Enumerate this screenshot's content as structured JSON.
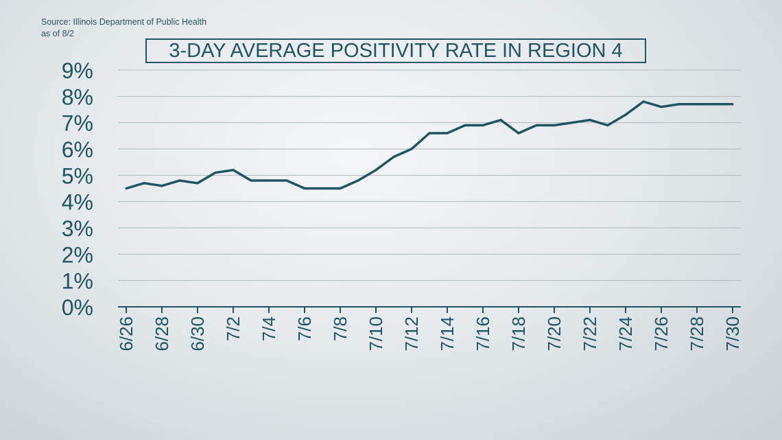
{
  "source": {
    "line1": "Source: Illinois Department of Public Health",
    "line2": "as of 8/2"
  },
  "chart_data": {
    "type": "line",
    "title": "3-DAY AVERAGE POSITIVITY RATE IN REGION 4",
    "xlabel": "",
    "ylabel": "",
    "ylim": [
      0,
      9
    ],
    "y_ticks": [
      "0%",
      "1%",
      "2%",
      "3%",
      "4%",
      "5%",
      "6%",
      "7%",
      "8%",
      "9%"
    ],
    "x_tick_labels": [
      "6/26",
      "6/28",
      "6/30",
      "7/2",
      "7/4",
      "7/6",
      "7/8",
      "7/10",
      "7/12",
      "7/14",
      "7/16",
      "7/18",
      "7/20",
      "7/22",
      "7/24",
      "7/26",
      "7/28",
      "7/30"
    ],
    "grid": true,
    "line_color": "#1f5562",
    "x": [
      "6/26",
      "6/27",
      "6/28",
      "6/29",
      "6/30",
      "7/1",
      "7/2",
      "7/3",
      "7/4",
      "7/5",
      "7/6",
      "7/7",
      "7/8",
      "7/9",
      "7/10",
      "7/11",
      "7/12",
      "7/13",
      "7/14",
      "7/15",
      "7/16",
      "7/17",
      "7/18",
      "7/19",
      "7/20",
      "7/21",
      "7/22",
      "7/23",
      "7/24",
      "7/25",
      "7/26",
      "7/27",
      "7/28",
      "7/29",
      "7/30"
    ],
    "series": [
      {
        "values": [
          4.5,
          4.7,
          4.6,
          4.8,
          4.7,
          5.1,
          5.2,
          4.8,
          4.8,
          4.8,
          4.5,
          4.5,
          4.5,
          4.8,
          5.2,
          5.7,
          6.0,
          6.6,
          6.6,
          6.9,
          6.9,
          7.1,
          6.6,
          6.9,
          6.9,
          7.0,
          7.1,
          6.9,
          7.3,
          7.8,
          7.6,
          7.7,
          7.7,
          7.7,
          7.7
        ]
      }
    ]
  }
}
